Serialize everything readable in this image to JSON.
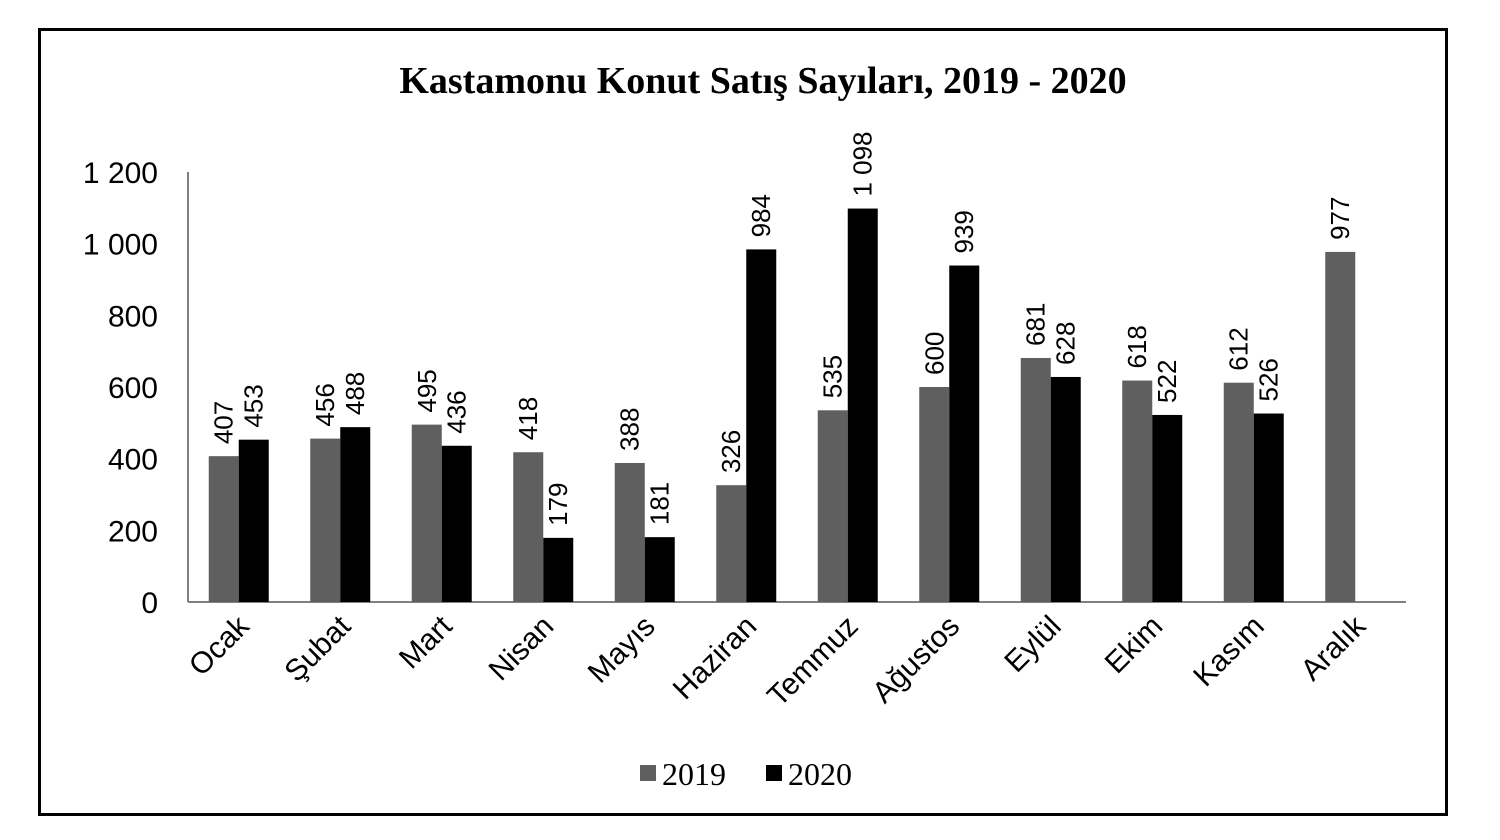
{
  "chart_data": {
    "type": "bar",
    "title": "Kastamonu Konut Satış Sayıları, 2019 - 2020",
    "xlabel": "",
    "ylabel": "",
    "categories": [
      "Ocak",
      "Şubat",
      "Mart",
      "Nisan",
      "Mayıs",
      "Haziran",
      "Temmuz",
      "Ağustos",
      "Eylül",
      "Ekim",
      "Kasım",
      "Aralık"
    ],
    "series": [
      {
        "name": "2019",
        "color": "#5f5f5f",
        "values": [
          407,
          456,
          495,
          418,
          388,
          326,
          535,
          600,
          681,
          618,
          612,
          977
        ],
        "labels": [
          "407",
          "456",
          "495",
          "418",
          "388",
          "326",
          "535",
          "600",
          "681",
          "618",
          "612",
          "977"
        ]
      },
      {
        "name": "2020",
        "color": "#000000",
        "values": [
          453,
          488,
          436,
          179,
          181,
          984,
          1098,
          939,
          628,
          522,
          526,
          null
        ],
        "labels": [
          "453",
          "488",
          "436",
          "179",
          "181",
          "984",
          "1 098",
          "939",
          "628",
          "522",
          "526",
          null
        ]
      }
    ],
    "ylim": [
      0,
      1200
    ],
    "yticks": [
      0,
      200,
      400,
      600,
      800,
      1000,
      1200
    ],
    "ytick_labels": [
      "0",
      "200",
      "400",
      "600",
      "800",
      "1 000",
      "1 200"
    ],
    "grid": false,
    "legend_position": "bottom"
  }
}
